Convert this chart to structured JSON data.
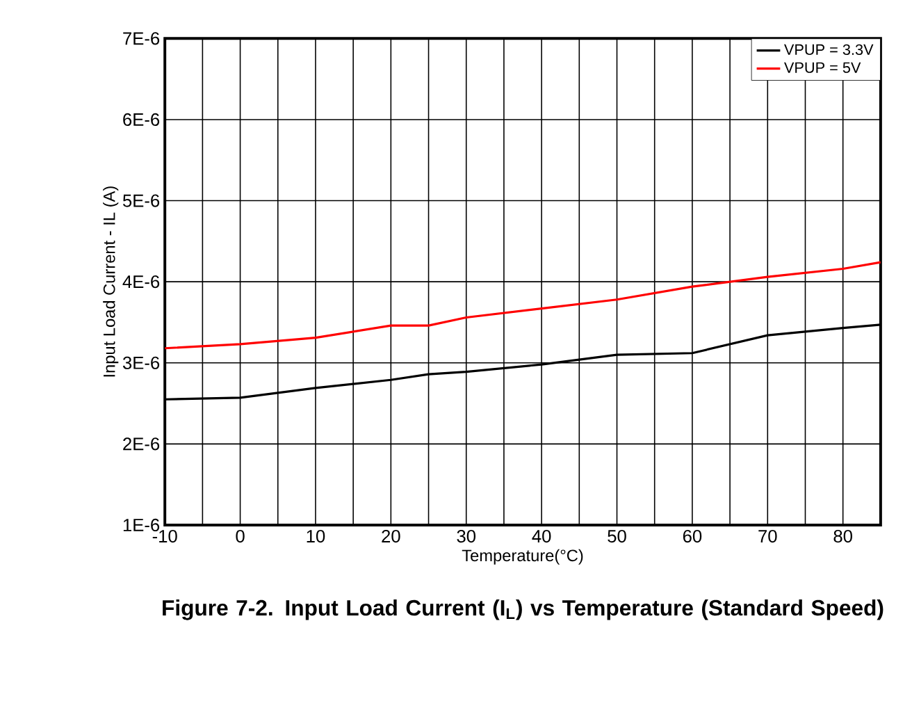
{
  "chart_data": {
    "type": "line",
    "title": "Figure 7-2. Input Load Current (I$_{L}$) vs Temperature (Standard Speed)",
    "xlabel": "Temperature(°C)",
    "ylabel": "Input Load Current - IL (A)",
    "x": [
      -10,
      0,
      10,
      20,
      25,
      30,
      40,
      50,
      60,
      70,
      80,
      85
    ],
    "series": [
      {
        "name": "VPUP = 3.3V",
        "color": "#000000",
        "values": [
          2.55e-06,
          2.57e-06,
          2.69e-06,
          2.79e-06,
          2.86e-06,
          2.89e-06,
          2.98e-06,
          3.1e-06,
          3.12e-06,
          3.34e-06,
          3.43e-06,
          3.47e-06
        ]
      },
      {
        "name": "VPUP = 5V",
        "color": "#ff0000",
        "values": [
          3.18e-06,
          3.23e-06,
          3.31e-06,
          3.46e-06,
          3.46e-06,
          3.56e-06,
          3.67e-06,
          3.78e-06,
          3.94e-06,
          4.06e-06,
          4.16e-06,
          4.24e-06
        ]
      }
    ],
    "xlim": [
      -10,
      85
    ],
    "ylim": [
      1e-06,
      7e-06
    ],
    "xticks": [
      -10,
      {
        "value": -5,
        "label": null
      },
      0,
      {
        "value": 5,
        "label": null
      },
      10,
      {
        "value": 15,
        "label": null
      },
      20,
      {
        "value": 25,
        "label": null
      },
      30,
      {
        "value": 35,
        "label": null
      },
      40,
      {
        "value": 45,
        "label": null
      },
      50,
      {
        "value": 55,
        "label": null
      },
      60,
      {
        "value": 65,
        "label": null
      },
      70,
      {
        "value": 75,
        "label": null
      },
      80
    ],
    "yticks": [
      {
        "value": 1e-06,
        "label": "1E-6"
      },
      {
        "value": 2e-06,
        "label": "2E-6"
      },
      {
        "value": 3e-06,
        "label": "3E-6"
      },
      {
        "value": 4e-06,
        "label": "4E-6"
      },
      {
        "value": 5e-06,
        "label": "5E-6"
      },
      {
        "value": 6e-06,
        "label": "6E-6"
      },
      {
        "value": 7e-06,
        "label": "7E-6"
      }
    ],
    "grid": true,
    "legend": "top right",
    "marker": "none",
    "line_style": "solid"
  }
}
